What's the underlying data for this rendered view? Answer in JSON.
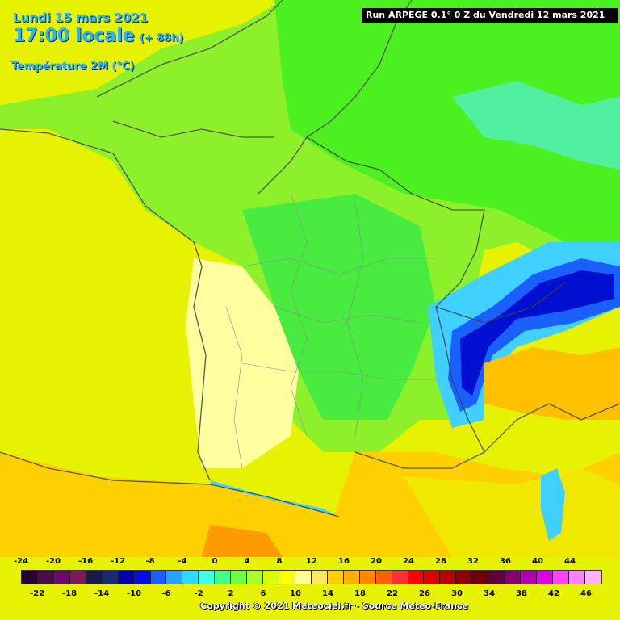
{
  "header": {
    "date": "Lundi 15 mars 2021",
    "time": "17:00 locale",
    "lead": "(+ 88h)",
    "parameter": "Température 2M (°C)"
  },
  "run_label": "Run ARPEGE 0.1° 0 Z du Vendredi 12 mars 2021",
  "copyright": "Copyright © 2021 Meteociel.fr - Source Meteo-France",
  "legend": {
    "top_ticks": [
      "-24",
      "-20",
      "-16",
      "-12",
      "-8",
      "-4",
      "0",
      "4",
      "8",
      "12",
      "16",
      "20",
      "24",
      "28",
      "32",
      "36",
      "40",
      "44"
    ],
    "bottom_ticks": [
      "-22",
      "-18",
      "-14",
      "-10",
      "-6",
      "-2",
      "2",
      "6",
      "10",
      "14",
      "18",
      "22",
      "26",
      "30",
      "34",
      "38",
      "42",
      "46"
    ],
    "colors": [
      "#2a0030",
      "#4a0b4a",
      "#6a0a6a",
      "#7a1a5a",
      "#1a1a4a",
      "#1a2a7a",
      "#0000b0",
      "#0010e0",
      "#1a60ff",
      "#2aa0ff",
      "#30d8ff",
      "#40ffe8",
      "#40ff90",
      "#70ff40",
      "#a8ff30",
      "#d8ff00",
      "#ffff00",
      "#ffff90",
      "#ffe860",
      "#ffd000",
      "#ffb000",
      "#ff8800",
      "#ff6000",
      "#ff3030",
      "#ff0000",
      "#e00000",
      "#b80000",
      "#900000",
      "#700000",
      "#600040",
      "#880070",
      "#b000b0",
      "#e000e0",
      "#ff40ff",
      "#ff80ff",
      "#ffb0ff"
    ]
  }
}
